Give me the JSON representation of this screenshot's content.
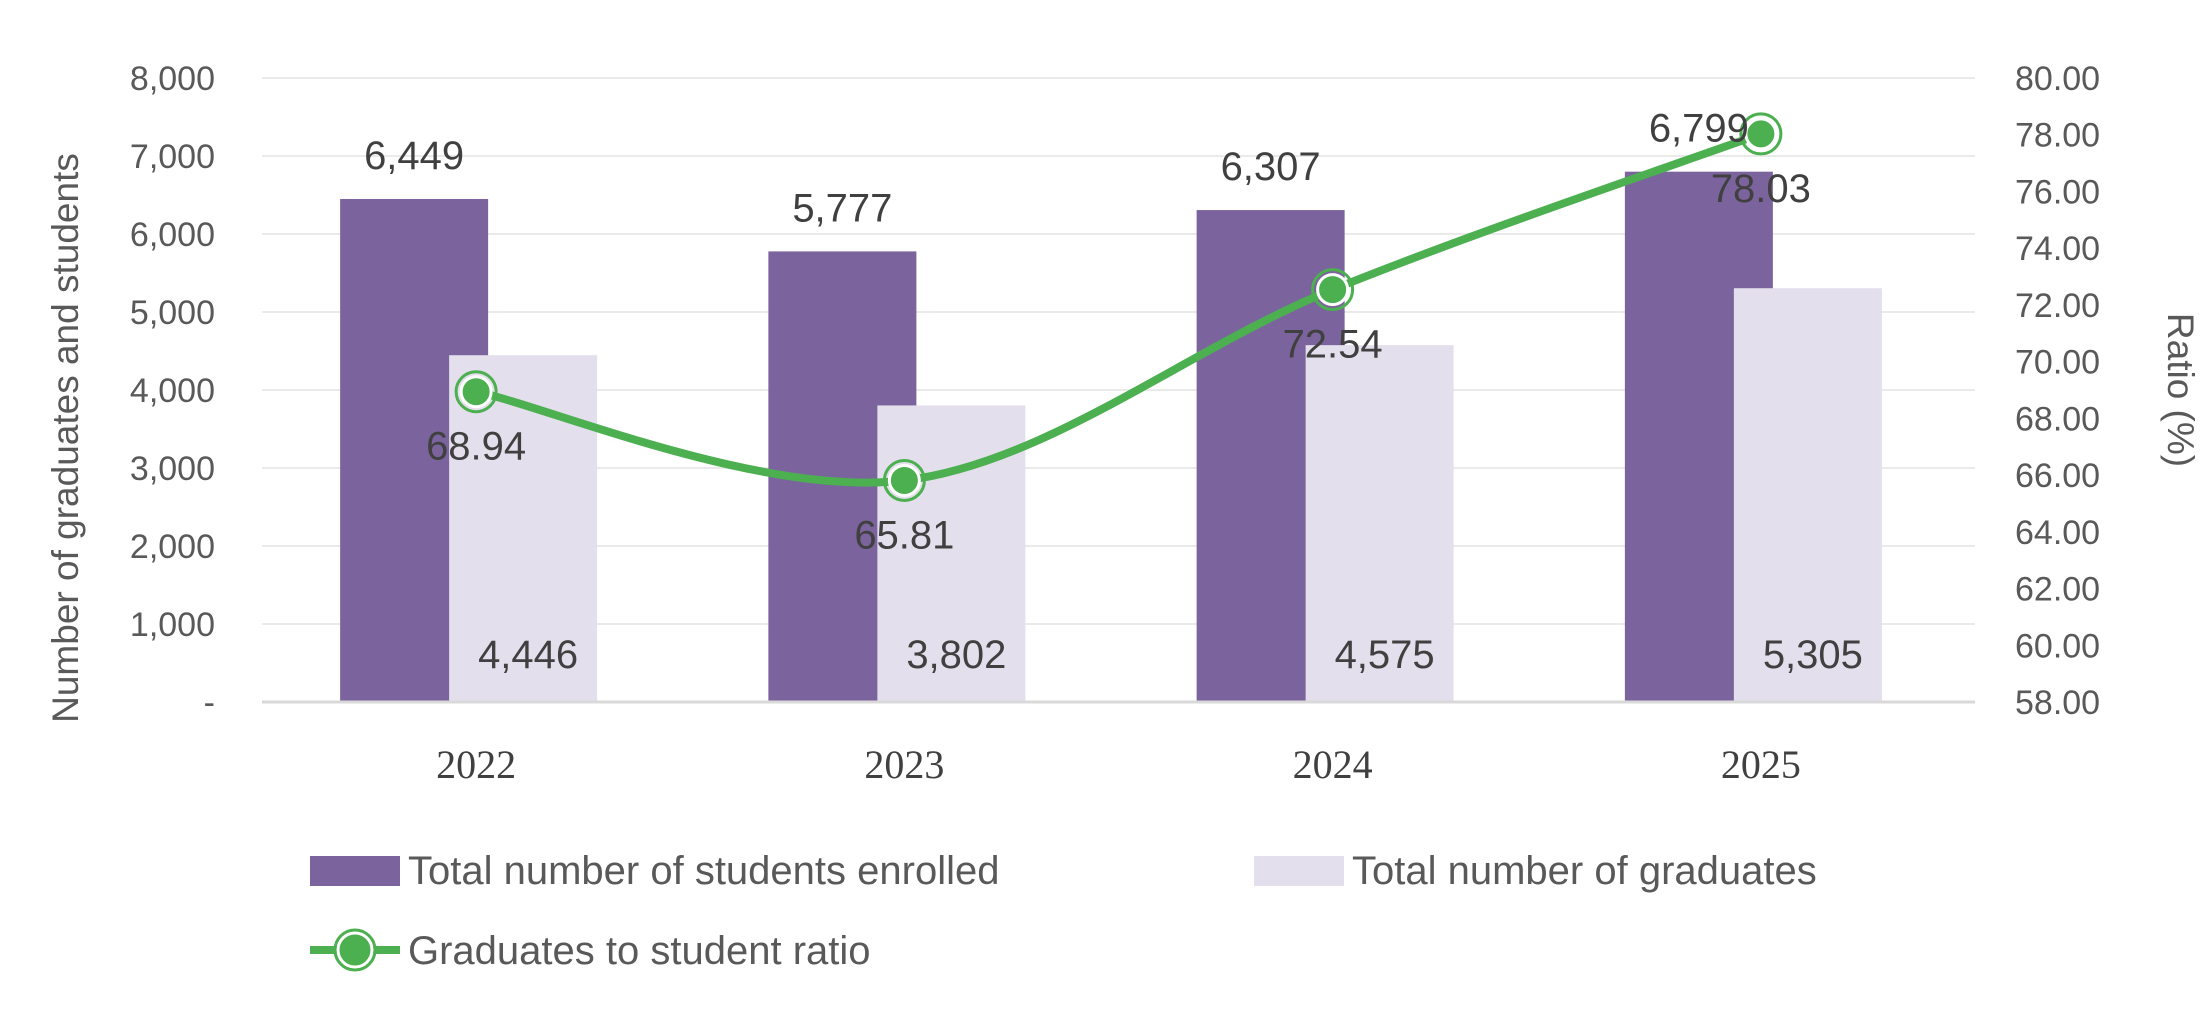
{
  "chart_data": {
    "type": "bar",
    "categories": [
      "2022",
      "2023",
      "2024",
      "2025"
    ],
    "series": [
      {
        "name": "Total number of students enrolled",
        "kind": "bar",
        "axis": "left",
        "color": "#7B649D",
        "values": [
          6449,
          5777,
          6307,
          6799
        ],
        "labels": [
          "6,449",
          "5,777",
          "6,307",
          "6,799"
        ]
      },
      {
        "name": "Total number of graduates",
        "kind": "bar",
        "axis": "left",
        "color": "#E4DFEC",
        "values": [
          4446,
          3802,
          4575,
          5305
        ],
        "labels": [
          "4,446",
          "3,802",
          "4,575",
          "5,305"
        ]
      },
      {
        "name": "Graduates to student ratio",
        "kind": "line",
        "axis": "right",
        "color": "#4CAF50",
        "values": [
          68.94,
          65.81,
          72.54,
          78.03
        ],
        "labels": [
          "68.94",
          "65.81",
          "72.54",
          "78.03"
        ]
      }
    ],
    "ylabel": "Number of graduates and students",
    "y2label": "Ratio (%)",
    "ylim": [
      0,
      8000
    ],
    "y2lim": [
      58,
      80
    ],
    "yticks": [
      "-",
      "1,000",
      "2,000",
      "3,000",
      "4,000",
      "5,000",
      "6,000",
      "7,000",
      "8,000"
    ],
    "y2ticks": [
      "58.00",
      "60.00",
      "62.00",
      "64.00",
      "66.00",
      "68.00",
      "70.00",
      "72.00",
      "74.00",
      "76.00",
      "78.00",
      "80.00"
    ],
    "grid": true,
    "legend_position": "bottom"
  }
}
